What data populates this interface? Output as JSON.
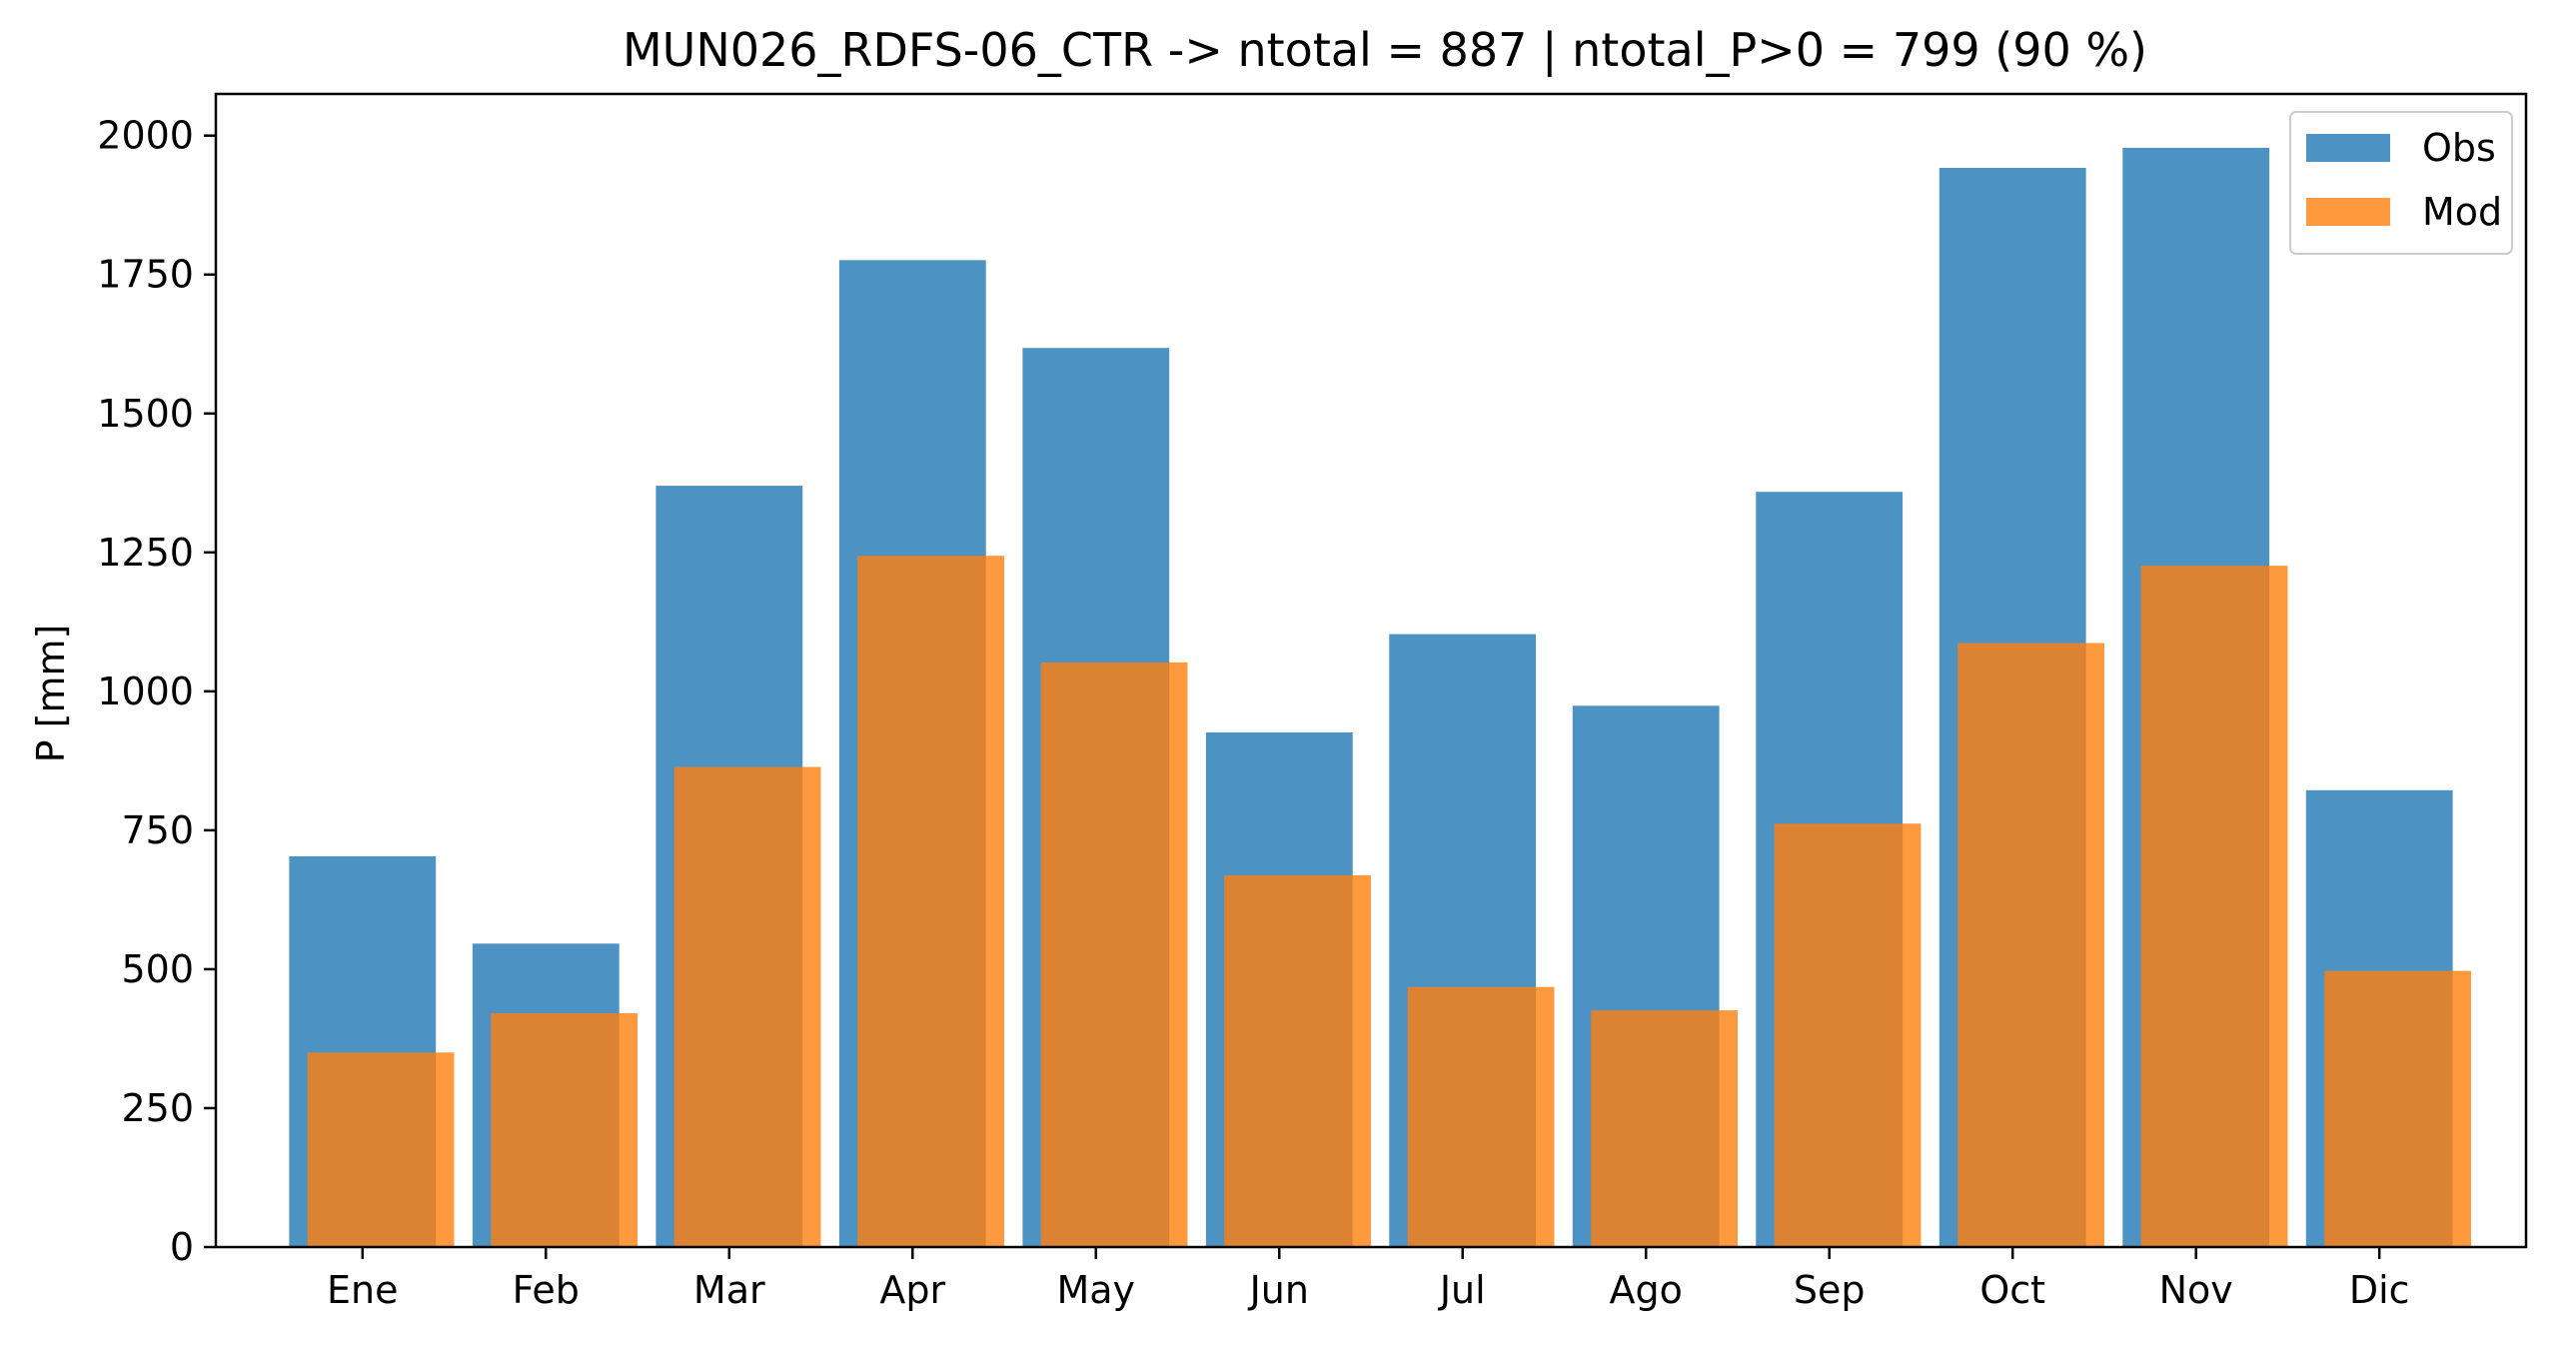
{
  "chart_data": {
    "type": "bar",
    "title": "MUN026_RDFS-06_CTR -> ntotal = 887 | ntotal_P>0 = 799 (90 %)",
    "xlabel": "",
    "ylabel": "P [mm]",
    "ylim": [
      0,
      2075
    ],
    "yticks": [
      0,
      250,
      500,
      750,
      1000,
      1250,
      1500,
      1750,
      2000
    ],
    "categories": [
      "Ene",
      "Feb",
      "Mar",
      "Apr",
      "May",
      "Jun",
      "Jul",
      "Ago",
      "Sep",
      "Oct",
      "Nov",
      "Dic"
    ],
    "series": [
      {
        "name": "Obs",
        "color": "#1f77b4",
        "values": [
          703,
          546,
          1370,
          1776,
          1618,
          926,
          1103,
          974,
          1359,
          1942,
          1978,
          822
        ]
      },
      {
        "name": "Mod",
        "color": "#ff7f0e",
        "values": [
          350,
          421,
          864,
          1244,
          1052,
          669,
          468,
          426,
          762,
          1087,
          1226,
          497
        ]
      }
    ],
    "grid": false,
    "legend": "top-right"
  }
}
